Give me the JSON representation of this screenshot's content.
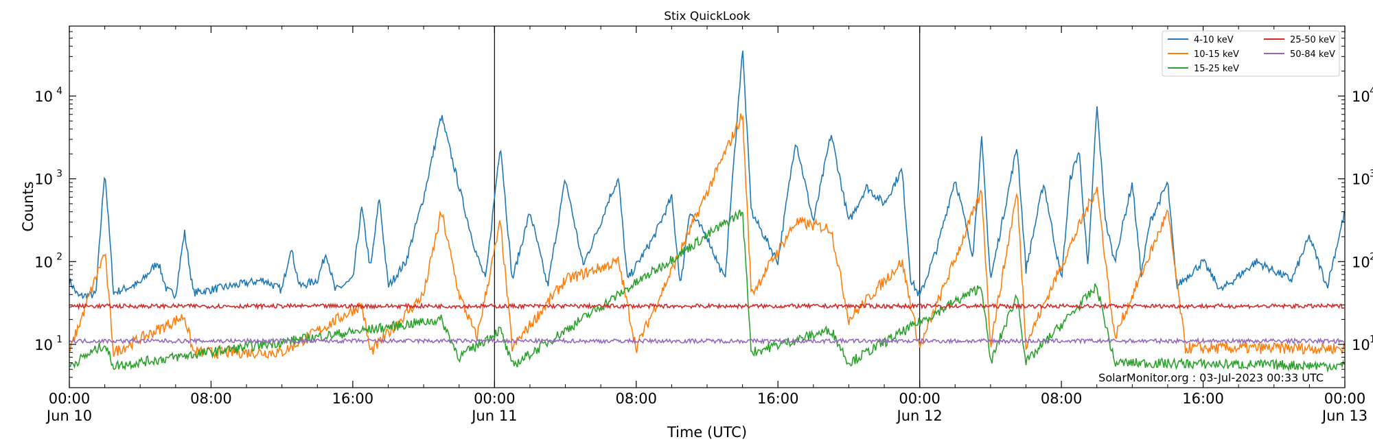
{
  "chart_data": {
    "type": "line",
    "title": "Stix QuickLook",
    "xlabel": "Time (UTC)",
    "ylabel": "Counts",
    "y_scale": "log",
    "ylim": [
      3,
      70000
    ],
    "xlim": [
      "2023-06-10 00:00",
      "2023-06-13 00:00"
    ],
    "x_ticks": [
      {
        "time": "2023-06-10 00:00",
        "line1": "00:00",
        "line2": "Jun 10"
      },
      {
        "time": "2023-06-10 08:00",
        "line1": "08:00",
        "line2": ""
      },
      {
        "time": "2023-06-10 16:00",
        "line1": "16:00",
        "line2": ""
      },
      {
        "time": "2023-06-11 00:00",
        "line1": "00:00",
        "line2": "Jun 11"
      },
      {
        "time": "2023-06-11 08:00",
        "line1": "08:00",
        "line2": ""
      },
      {
        "time": "2023-06-11 16:00",
        "line1": "16:00",
        "line2": ""
      },
      {
        "time": "2023-06-12 00:00",
        "line1": "00:00",
        "line2": "Jun 12"
      },
      {
        "time": "2023-06-12 08:00",
        "line1": "08:00",
        "line2": ""
      },
      {
        "time": "2023-06-12 16:00",
        "line1": "16:00",
        "line2": ""
      },
      {
        "time": "2023-06-13 00:00",
        "line1": "00:00",
        "line2": "Jun 13"
      }
    ],
    "y_ticks": [
      {
        "value": 10,
        "base": "10",
        "exp": "1"
      },
      {
        "value": 100,
        "base": "10",
        "exp": "2"
      },
      {
        "value": 1000,
        "base": "10",
        "exp": "3"
      },
      {
        "value": 10000,
        "base": "10",
        "exp": "4"
      }
    ],
    "day_boundaries": [
      "2023-06-11 00:00",
      "2023-06-12 00:00"
    ],
    "legend": {
      "placement": "top-right",
      "columns": 2
    },
    "annotation": "SolarMonitor.org : 03-Jul-2023 00:33 UTC",
    "series": [
      {
        "name": "4-10 keV",
        "color": "#1f77b4",
        "points": [
          [
            "2023-06-10 00:00",
            60
          ],
          [
            "2023-06-10 00:30",
            38
          ],
          [
            "2023-06-10 01:30",
            40
          ],
          [
            "2023-06-10 02:00",
            1300
          ],
          [
            "2023-06-10 02:30",
            42
          ],
          [
            "2023-06-10 04:00",
            55
          ],
          [
            "2023-06-10 05:00",
            100
          ],
          [
            "2023-06-10 05:30",
            45
          ],
          [
            "2023-06-10 06:00",
            40
          ],
          [
            "2023-06-10 06:30",
            230
          ],
          [
            "2023-06-10 07:00",
            42
          ],
          [
            "2023-06-10 09:00",
            50
          ],
          [
            "2023-06-10 10:00",
            55
          ],
          [
            "2023-06-10 11:00",
            60
          ],
          [
            "2023-06-10 12:00",
            45
          ],
          [
            "2023-06-10 12:30",
            150
          ],
          [
            "2023-06-10 13:00",
            50
          ],
          [
            "2023-06-10 14:00",
            60
          ],
          [
            "2023-06-10 14:30",
            130
          ],
          [
            "2023-06-10 15:00",
            45
          ],
          [
            "2023-06-10 16:00",
            60
          ],
          [
            "2023-06-10 16:30",
            450
          ],
          [
            "2023-06-10 17:00",
            80
          ],
          [
            "2023-06-10 17:30",
            600
          ],
          [
            "2023-06-10 18:00",
            50
          ],
          [
            "2023-06-10 19:00",
            100
          ],
          [
            "2023-06-10 20:00",
            600
          ],
          [
            "2023-06-10 21:00",
            5800
          ],
          [
            "2023-06-10 22:00",
            800
          ],
          [
            "2023-06-10 22:30",
            300
          ],
          [
            "2023-06-10 23:00",
            120
          ],
          [
            "2023-06-10 23:30",
            60
          ],
          [
            "2023-06-11 00:00",
            600
          ],
          [
            "2023-06-11 00:20",
            2700
          ],
          [
            "2023-06-11 01:00",
            60
          ],
          [
            "2023-06-11 02:00",
            400
          ],
          [
            "2023-06-11 03:00",
            50
          ],
          [
            "2023-06-11 04:00",
            1000
          ],
          [
            "2023-06-11 05:00",
            90
          ],
          [
            "2023-06-11 06:00",
            300
          ],
          [
            "2023-06-11 06:30",
            600
          ],
          [
            "2023-06-11 07:00",
            1000
          ],
          [
            "2023-06-11 07:30",
            60
          ],
          [
            "2023-06-11 09:00",
            200
          ],
          [
            "2023-06-11 10:00",
            600
          ],
          [
            "2023-06-11 10:30",
            50
          ],
          [
            "2023-06-11 11:00",
            400
          ],
          [
            "2023-06-11 12:00",
            200
          ],
          [
            "2023-06-11 13:00",
            60
          ],
          [
            "2023-06-11 13:30",
            1500
          ],
          [
            "2023-06-11 14:00",
            38000
          ],
          [
            "2023-06-11 14:30",
            400
          ],
          [
            "2023-06-11 15:00",
            250
          ],
          [
            "2023-06-11 16:00",
            100
          ],
          [
            "2023-06-11 17:00",
            3000
          ],
          [
            "2023-06-11 18:00",
            300
          ],
          [
            "2023-06-11 19:00",
            3500
          ],
          [
            "2023-06-11 20:00",
            300
          ],
          [
            "2023-06-11 21:00",
            800
          ],
          [
            "2023-06-11 22:00",
            500
          ],
          [
            "2023-06-11 23:00",
            1300
          ],
          [
            "2023-06-11 23:30",
            60
          ],
          [
            "2023-06-12 00:00",
            38
          ],
          [
            "2023-06-12 01:00",
            150
          ],
          [
            "2023-06-12 02:00",
            1000
          ],
          [
            "2023-06-12 03:00",
            120
          ],
          [
            "2023-06-12 03:30",
            3000
          ],
          [
            "2023-06-12 04:00",
            60
          ],
          [
            "2023-06-12 05:00",
            700
          ],
          [
            "2023-06-12 05:30",
            2500
          ],
          [
            "2023-06-12 06:00",
            80
          ],
          [
            "2023-06-12 07:00",
            900
          ],
          [
            "2023-06-12 08:00",
            60
          ],
          [
            "2023-06-12 08:30",
            1000
          ],
          [
            "2023-06-12 09:00",
            2200
          ],
          [
            "2023-06-12 09:30",
            80
          ],
          [
            "2023-06-12 10:00",
            7800
          ],
          [
            "2023-06-12 10:30",
            300
          ],
          [
            "2023-06-12 11:00",
            100
          ],
          [
            "2023-06-12 12:00",
            900
          ],
          [
            "2023-06-12 12:30",
            70
          ],
          [
            "2023-06-12 13:00",
            300
          ],
          [
            "2023-06-12 14:00",
            900
          ],
          [
            "2023-06-12 14:30",
            50
          ],
          [
            "2023-06-12 16:00",
            100
          ],
          [
            "2023-06-12 17:00",
            45
          ],
          [
            "2023-06-12 19:00",
            100
          ],
          [
            "2023-06-12 21:00",
            60
          ],
          [
            "2023-06-12 22:00",
            200
          ],
          [
            "2023-06-12 23:00",
            50
          ],
          [
            "2023-06-13 00:00",
            400
          ]
        ]
      },
      {
        "name": "10-15 keV",
        "color": "#ff7f0e",
        "points": [
          [
            "2023-06-10 00:00",
            8
          ],
          [
            "2023-06-10 02:00",
            130
          ],
          [
            "2023-06-10 02:30",
            8
          ],
          [
            "2023-06-10 06:30",
            22
          ],
          [
            "2023-06-10 07:00",
            8
          ],
          [
            "2023-06-10 12:00",
            8
          ],
          [
            "2023-06-10 16:30",
            30
          ],
          [
            "2023-06-10 17:00",
            8
          ],
          [
            "2023-06-10 20:00",
            40
          ],
          [
            "2023-06-10 21:00",
            400
          ],
          [
            "2023-06-10 22:00",
            40
          ],
          [
            "2023-06-10 23:00",
            12
          ],
          [
            "2023-06-11 00:20",
            300
          ],
          [
            "2023-06-11 01:00",
            9
          ],
          [
            "2023-06-11 04:00",
            60
          ],
          [
            "2023-06-11 07:00",
            100
          ],
          [
            "2023-06-11 08:00",
            9
          ],
          [
            "2023-06-11 14:00",
            6000
          ],
          [
            "2023-06-11 14:30",
            40
          ],
          [
            "2023-06-11 17:00",
            300
          ],
          [
            "2023-06-11 19:00",
            250
          ],
          [
            "2023-06-11 20:00",
            20
          ],
          [
            "2023-06-11 23:00",
            100
          ],
          [
            "2023-06-12 00:00",
            9
          ],
          [
            "2023-06-12 03:30",
            700
          ],
          [
            "2023-06-12 04:00",
            10
          ],
          [
            "2023-06-12 05:30",
            700
          ],
          [
            "2023-06-12 06:00",
            10
          ],
          [
            "2023-06-12 10:00",
            800
          ],
          [
            "2023-06-12 11:00",
            12
          ],
          [
            "2023-06-12 14:00",
            400
          ],
          [
            "2023-06-12 15:00",
            9
          ],
          [
            "2023-06-13 00:00",
            9
          ]
        ]
      },
      {
        "name": "15-25 keV",
        "color": "#2ca02c",
        "points": [
          [
            "2023-06-10 00:00",
            5.5
          ],
          [
            "2023-06-10 02:00",
            10
          ],
          [
            "2023-06-10 02:30",
            5.5
          ],
          [
            "2023-06-10 21:00",
            20
          ],
          [
            "2023-06-10 22:00",
            7
          ],
          [
            "2023-06-11 00:20",
            15
          ],
          [
            "2023-06-11 01:00",
            5.5
          ],
          [
            "2023-06-11 14:00",
            400
          ],
          [
            "2023-06-11 14:30",
            8
          ],
          [
            "2023-06-11 19:00",
            15
          ],
          [
            "2023-06-11 20:00",
            6
          ],
          [
            "2023-06-12 03:30",
            50
          ],
          [
            "2023-06-12 04:00",
            6
          ],
          [
            "2023-06-12 05:30",
            40
          ],
          [
            "2023-06-12 06:00",
            6
          ],
          [
            "2023-06-12 10:00",
            50
          ],
          [
            "2023-06-12 11:00",
            6
          ],
          [
            "2023-06-13 00:00",
            5.5
          ]
        ]
      },
      {
        "name": "25-50 keV",
        "color": "#d62728",
        "points": [
          [
            "2023-06-10 00:00",
            29
          ],
          [
            "2023-06-13 00:00",
            29
          ]
        ]
      },
      {
        "name": "50-84 keV",
        "color": "#9467bd",
        "points": [
          [
            "2023-06-10 00:00",
            11
          ],
          [
            "2023-06-13 00:00",
            11
          ]
        ]
      }
    ]
  }
}
